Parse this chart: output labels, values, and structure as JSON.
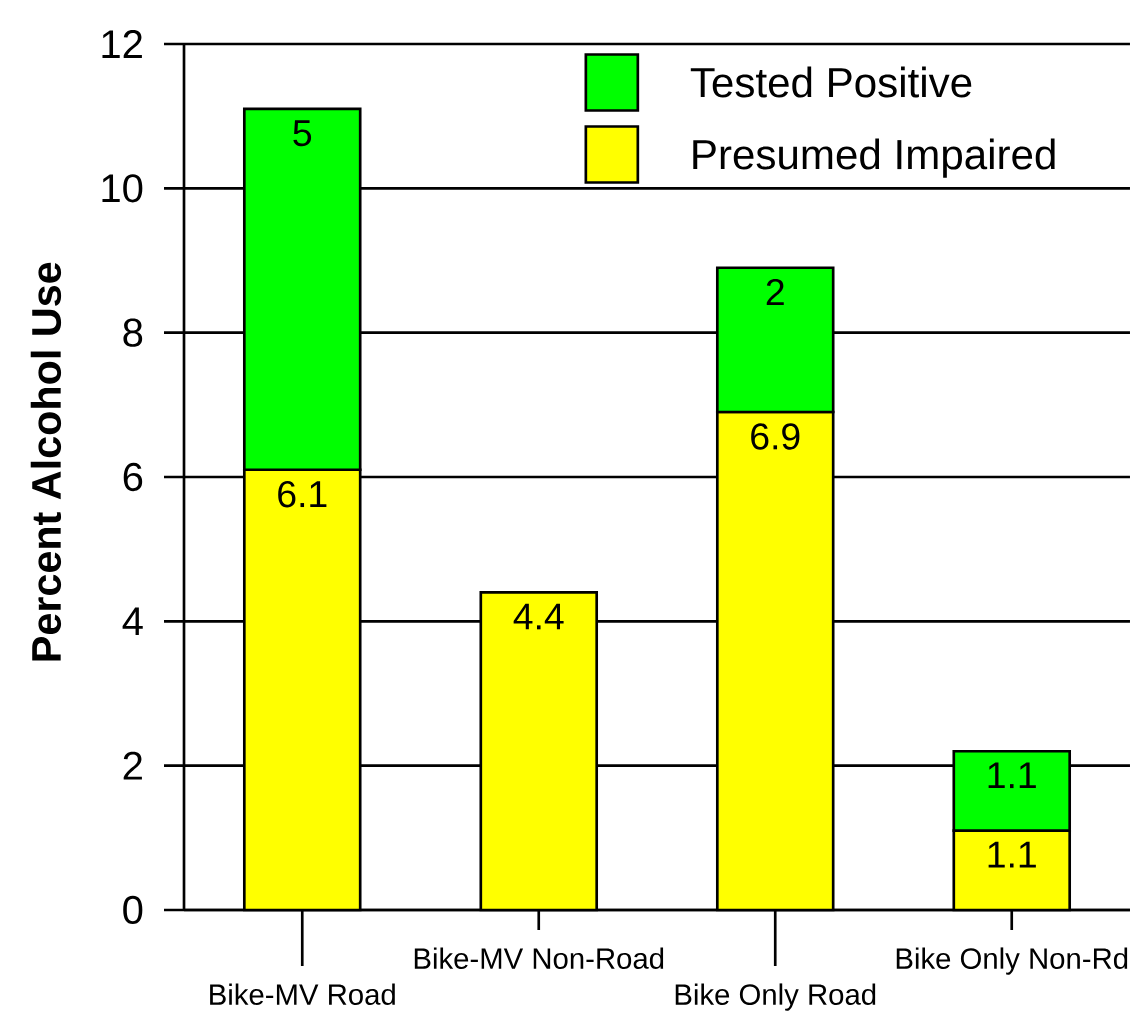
{
  "chart_data": {
    "type": "bar",
    "stacked": true,
    "ylabel": "Percent Alcohol Use",
    "categories": [
      "Bike-MV Road",
      "Bike-MV Non-Road",
      "Bike Only Road",
      "Bike Only Non-Rd"
    ],
    "series": [
      {
        "name": "Presumed Impaired",
        "color": "#ffff00",
        "values": [
          6.1,
          4.4,
          6.9,
          1.1
        ]
      },
      {
        "name": "Tested Positive",
        "color": "#00ff00",
        "values": [
          5,
          null,
          2,
          1.1
        ]
      }
    ],
    "ylim": [
      0,
      12
    ],
    "yticks": [
      0,
      2,
      4,
      6,
      8,
      10,
      12
    ],
    "grid": "y",
    "legend": "top right",
    "data_labels": true
  }
}
